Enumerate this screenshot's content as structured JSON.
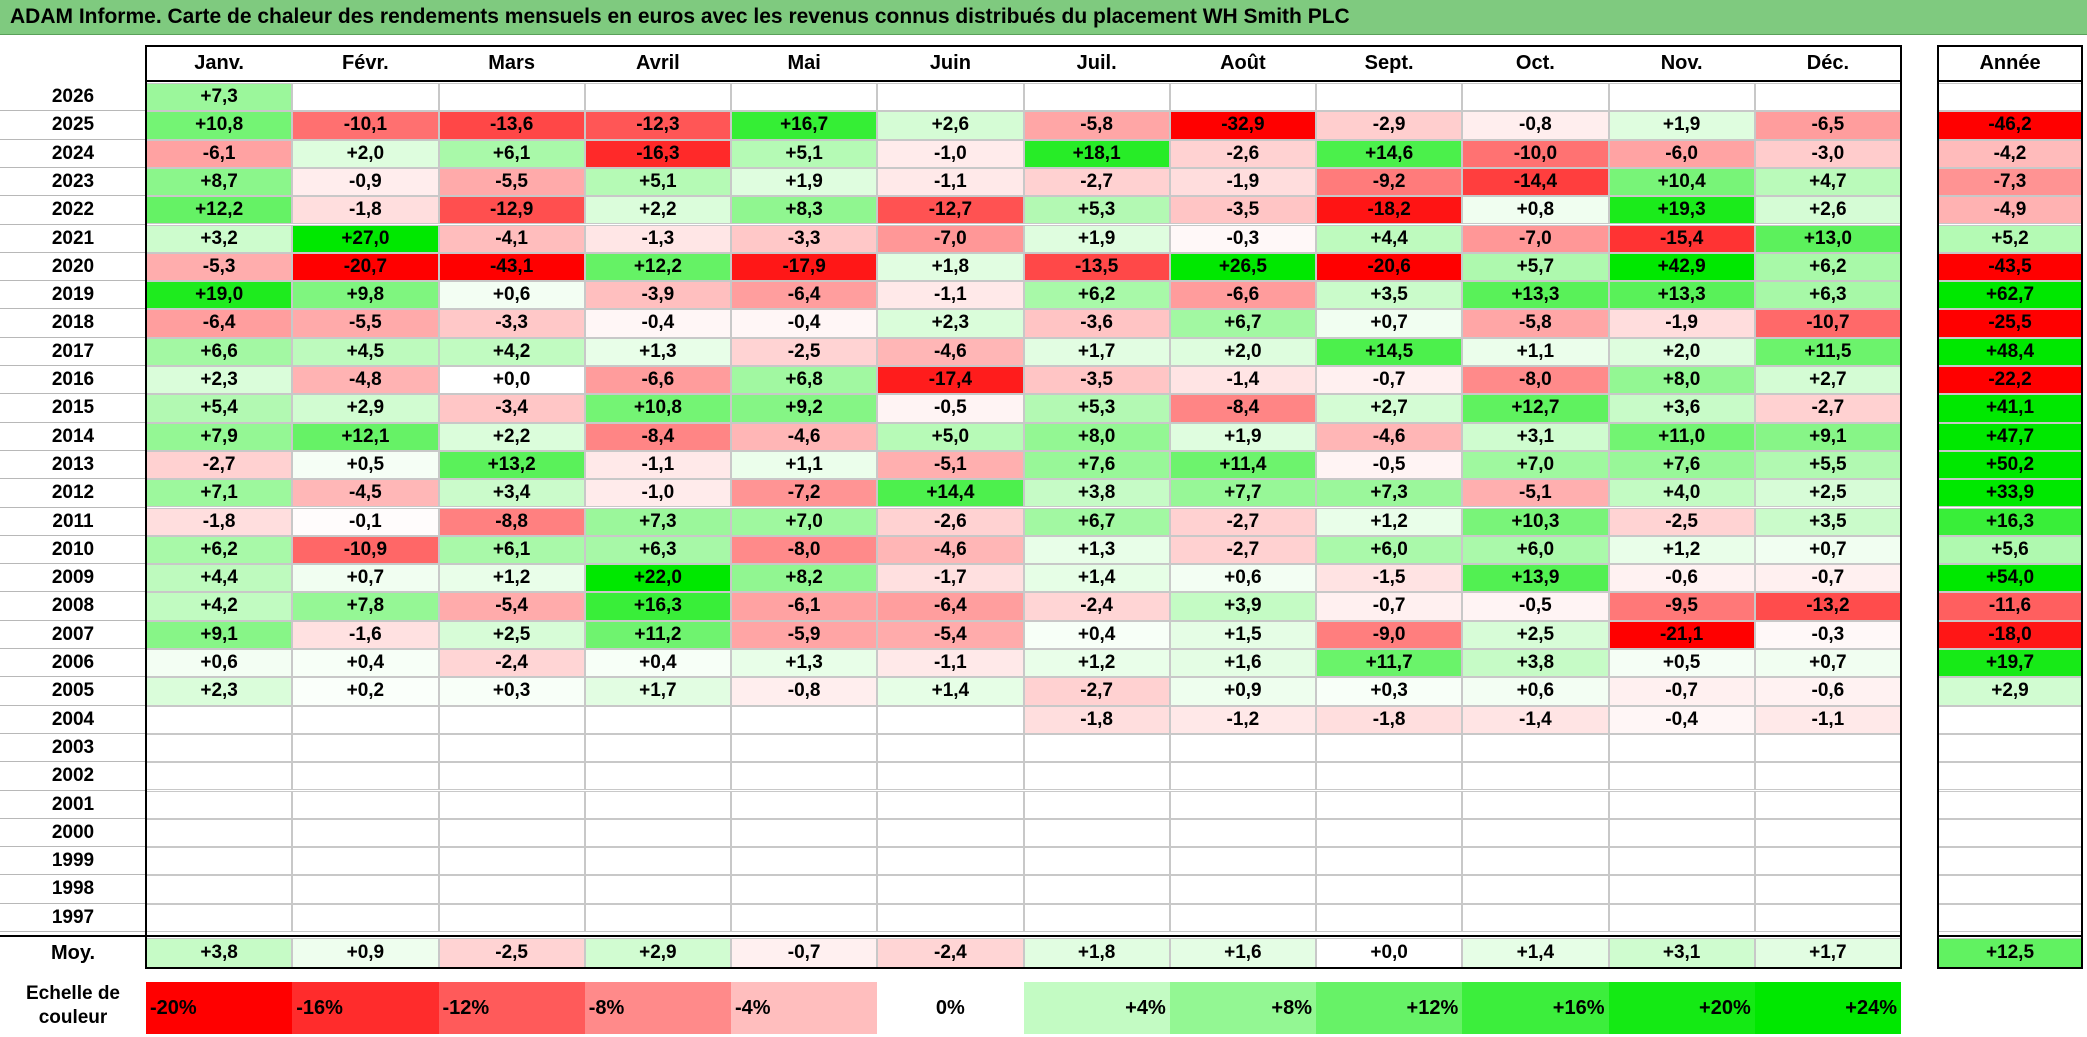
{
  "title": "ADAM Informe. Carte de chaleur des rendements mensuels en euros avec les revenus connus distribués du placement WH Smith PLC",
  "months": [
    "Janv.",
    "Févr.",
    "Mars",
    "Avril",
    "Mai",
    "Juin",
    "Juil.",
    "Août",
    "Sept.",
    "Oct.",
    "Nov.",
    "Déc."
  ],
  "annual_header": "Année",
  "avg_label": "Moy.",
  "scale_label": "Echelle de couleur",
  "scale": [
    {
      "label": "-20%",
      "value": -20
    },
    {
      "label": "-16%",
      "value": -16
    },
    {
      "label": "-12%",
      "value": -12
    },
    {
      "label": "-8%",
      "value": -8
    },
    {
      "label": "-4%",
      "value": -4
    },
    {
      "label": "0%",
      "value": 0
    },
    {
      "label": "+4%",
      "value": 4
    },
    {
      "label": "+8%",
      "value": 8
    },
    {
      "label": "+12%",
      "value": 12
    },
    {
      "label": "+16%",
      "value": 16
    },
    {
      "label": "+20%",
      "value": 20
    },
    {
      "label": "+24%",
      "value": 24
    }
  ],
  "colors": {
    "negative": "#ff0000",
    "positive": "#00ee00",
    "neutral": "#ffffff",
    "title_bg": "#7fca7f"
  },
  "chart_data": {
    "type": "heatmap",
    "title": "ADAM Informe. Carte de chaleur des rendements mensuels en euros avec les revenus connus distribués du placement WH Smith PLC",
    "rows": [
      {
        "year": "2026",
        "months": [
          "+7,3",
          null,
          null,
          null,
          null,
          null,
          null,
          null,
          null,
          null,
          null,
          null
        ],
        "annual": null
      },
      {
        "year": "2025",
        "months": [
          "+10,8",
          "-10,1",
          "-13,6",
          "-12,3",
          "+16,7",
          "+2,6",
          "-5,8",
          "-32,9",
          "-2,9",
          "-0,8",
          "+1,9",
          "-6,5"
        ],
        "annual": "-46,2"
      },
      {
        "year": "2024",
        "months": [
          "-6,1",
          "+2,0",
          "+6,1",
          "-16,3",
          "+5,1",
          "-1,0",
          "+18,1",
          "-2,6",
          "+14,6",
          "-10,0",
          "-6,0",
          "-3,0"
        ],
        "annual": "-4,2"
      },
      {
        "year": "2023",
        "months": [
          "+8,7",
          "-0,9",
          "-5,5",
          "+5,1",
          "+1,9",
          "-1,1",
          "-2,7",
          "-1,9",
          "-9,2",
          "-14,4",
          "+10,4",
          "+4,7"
        ],
        "annual": "-7,3"
      },
      {
        "year": "2022",
        "months": [
          "+12,2",
          "-1,8",
          "-12,9",
          "+2,2",
          "+8,3",
          "-12,7",
          "+5,3",
          "-3,5",
          "-18,2",
          "+0,8",
          "+19,3",
          "+2,6"
        ],
        "annual": "-4,9"
      },
      {
        "year": "2021",
        "months": [
          "+3,2",
          "+27,0",
          "-4,1",
          "-1,3",
          "-3,3",
          "-7,0",
          "+1,9",
          "-0,3",
          "+4,4",
          "-7,0",
          "-15,4",
          "+13,0"
        ],
        "annual": "+5,2"
      },
      {
        "year": "2020",
        "months": [
          "-5,3",
          "-20,7",
          "-43,1",
          "+12,2",
          "-17,9",
          "+1,8",
          "-13,5",
          "+26,5",
          "-20,6",
          "+5,7",
          "+42,9",
          "+6,2"
        ],
        "annual": "-43,5"
      },
      {
        "year": "2019",
        "months": [
          "+19,0",
          "+9,8",
          "+0,6",
          "-3,9",
          "-6,4",
          "-1,1",
          "+6,2",
          "-6,6",
          "+3,5",
          "+13,3",
          "+13,3",
          "+6,3"
        ],
        "annual": "+62,7"
      },
      {
        "year": "2018",
        "months": [
          "-6,4",
          "-5,5",
          "-3,3",
          "-0,4",
          "-0,4",
          "+2,3",
          "-3,6",
          "+6,7",
          "+0,7",
          "-5,8",
          "-1,9",
          "-10,7"
        ],
        "annual": "-25,5"
      },
      {
        "year": "2017",
        "months": [
          "+6,6",
          "+4,5",
          "+4,2",
          "+1,3",
          "-2,5",
          "-4,6",
          "+1,7",
          "+2,0",
          "+14,5",
          "+1,1",
          "+2,0",
          "+11,5"
        ],
        "annual": "+48,4"
      },
      {
        "year": "2016",
        "months": [
          "+2,3",
          "-4,8",
          "+0,0",
          "-6,6",
          "+6,8",
          "-17,4",
          "-3,5",
          "-1,4",
          "-0,7",
          "-8,0",
          "+8,0",
          "+2,7"
        ],
        "annual": "-22,2"
      },
      {
        "year": "2015",
        "months": [
          "+5,4",
          "+2,9",
          "-3,4",
          "+10,8",
          "+9,2",
          "-0,5",
          "+5,3",
          "-8,4",
          "+2,7",
          "+12,7",
          "+3,6",
          "-2,7"
        ],
        "annual": "+41,1"
      },
      {
        "year": "2014",
        "months": [
          "+7,9",
          "+12,1",
          "+2,2",
          "-8,4",
          "-4,6",
          "+5,0",
          "+8,0",
          "+1,9",
          "-4,6",
          "+3,1",
          "+11,0",
          "+9,1"
        ],
        "annual": "+47,7"
      },
      {
        "year": "2013",
        "months": [
          "-2,7",
          "+0,5",
          "+13,2",
          "-1,1",
          "+1,1",
          "-5,1",
          "+7,6",
          "+11,4",
          "-0,5",
          "+7,0",
          "+7,6",
          "+5,5"
        ],
        "annual": "+50,2"
      },
      {
        "year": "2012",
        "months": [
          "+7,1",
          "-4,5",
          "+3,4",
          "-1,0",
          "-7,2",
          "+14,4",
          "+3,8",
          "+7,7",
          "+7,3",
          "-5,1",
          "+4,0",
          "+2,5"
        ],
        "annual": "+33,9"
      },
      {
        "year": "2011",
        "months": [
          "-1,8",
          "-0,1",
          "-8,8",
          "+7,3",
          "+7,0",
          "-2,6",
          "+6,7",
          "-2,7",
          "+1,2",
          "+10,3",
          "-2,5",
          "+3,5"
        ],
        "annual": "+16,3"
      },
      {
        "year": "2010",
        "months": [
          "+6,2",
          "-10,9",
          "+6,1",
          "+6,3",
          "-8,0",
          "-4,6",
          "+1,3",
          "-2,7",
          "+6,0",
          "+6,0",
          "+1,2",
          "+0,7"
        ],
        "annual": "+5,6"
      },
      {
        "year": "2009",
        "months": [
          "+4,4",
          "+0,7",
          "+1,2",
          "+22,0",
          "+8,2",
          "-1,7",
          "+1,4",
          "+0,6",
          "-1,5",
          "+13,9",
          "-0,6",
          "-0,7"
        ],
        "annual": "+54,0"
      },
      {
        "year": "2008",
        "months": [
          "+4,2",
          "+7,8",
          "-5,4",
          "+16,3",
          "-6,1",
          "-6,4",
          "-2,4",
          "+3,9",
          "-0,7",
          "-0,5",
          "-9,5",
          "-13,2"
        ],
        "annual": "-11,6"
      },
      {
        "year": "2007",
        "months": [
          "+9,1",
          "-1,6",
          "+2,5",
          "+11,2",
          "-5,9",
          "-5,4",
          "+0,4",
          "+1,5",
          "-9,0",
          "+2,5",
          "-21,1",
          "-0,3"
        ],
        "annual": "-18,0"
      },
      {
        "year": "2006",
        "months": [
          "+0,6",
          "+0,4",
          "-2,4",
          "+0,4",
          "+1,3",
          "-1,1",
          "+1,2",
          "+1,6",
          "+11,7",
          "+3,8",
          "+0,5",
          "+0,7"
        ],
        "annual": "+19,7"
      },
      {
        "year": "2005",
        "months": [
          "+2,3",
          "+0,2",
          "+0,3",
          "+1,7",
          "-0,8",
          "+1,4",
          "-2,7",
          "+0,9",
          "+0,3",
          "+0,6",
          "-0,7",
          "-0,6"
        ],
        "annual": "+2,9"
      },
      {
        "year": "2004",
        "months": [
          null,
          null,
          null,
          null,
          null,
          null,
          "-1,8",
          "-1,2",
          "-1,8",
          "-1,4",
          "-0,4",
          "-1,1"
        ],
        "annual": null
      },
      {
        "year": "2003",
        "months": [
          null,
          null,
          null,
          null,
          null,
          null,
          null,
          null,
          null,
          null,
          null,
          null
        ],
        "annual": null
      },
      {
        "year": "2002",
        "months": [
          null,
          null,
          null,
          null,
          null,
          null,
          null,
          null,
          null,
          null,
          null,
          null
        ],
        "annual": null
      },
      {
        "year": "2001",
        "months": [
          null,
          null,
          null,
          null,
          null,
          null,
          null,
          null,
          null,
          null,
          null,
          null
        ],
        "annual": null
      },
      {
        "year": "2000",
        "months": [
          null,
          null,
          null,
          null,
          null,
          null,
          null,
          null,
          null,
          null,
          null,
          null
        ],
        "annual": null
      },
      {
        "year": "1999",
        "months": [
          null,
          null,
          null,
          null,
          null,
          null,
          null,
          null,
          null,
          null,
          null,
          null
        ],
        "annual": null
      },
      {
        "year": "1998",
        "months": [
          null,
          null,
          null,
          null,
          null,
          null,
          null,
          null,
          null,
          null,
          null,
          null
        ],
        "annual": null
      },
      {
        "year": "1997",
        "months": [
          null,
          null,
          null,
          null,
          null,
          null,
          null,
          null,
          null,
          null,
          null,
          null
        ],
        "annual": null
      }
    ],
    "averages": [
      "+3,8",
      "+0,9",
      "-2,5",
      "+2,9",
      "-0,7",
      "-2,4",
      "+1,8",
      "+1,6",
      "+0,0",
      "+1,4",
      "+3,1",
      "+1,7"
    ],
    "average_annual": "+12,5"
  }
}
